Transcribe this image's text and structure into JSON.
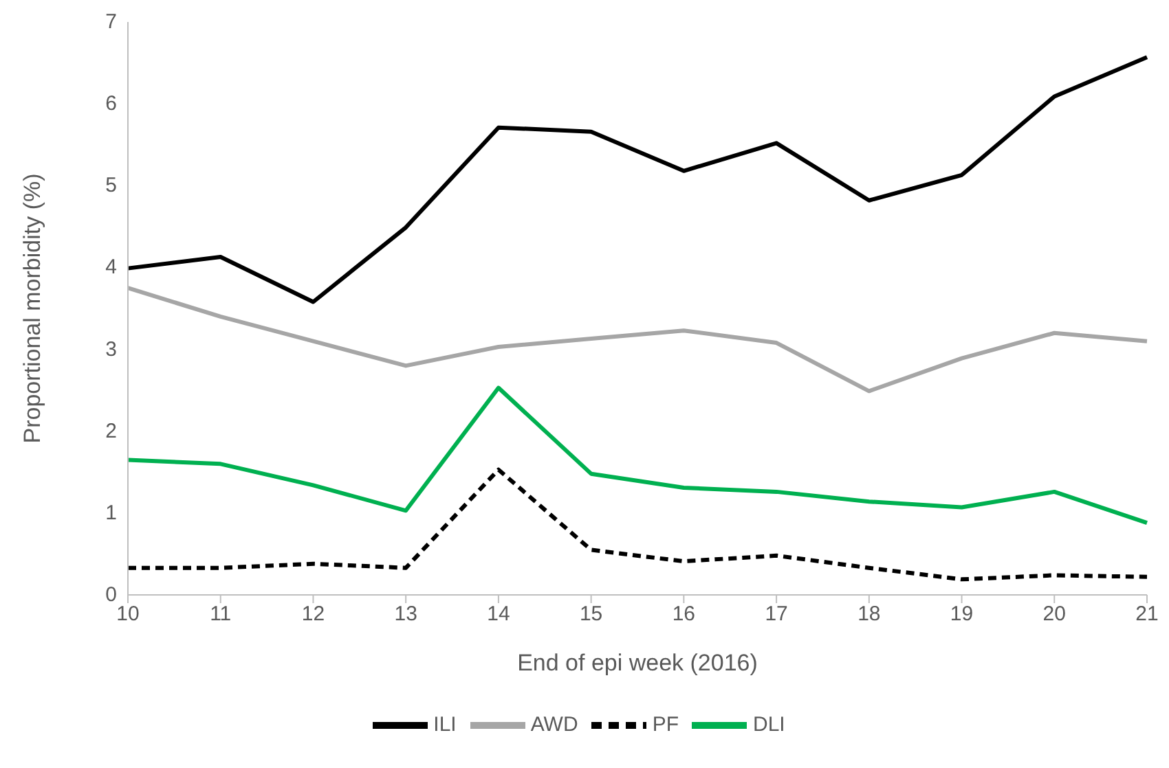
{
  "chart_data": {
    "type": "line",
    "xlabel": "End of epi week (2016)",
    "ylabel": "Proportional morbidity (%)",
    "categories": [
      "10",
      "11",
      "12",
      "13",
      "14",
      "15",
      "16",
      "17",
      "18",
      "19",
      "20",
      "21"
    ],
    "ylim": [
      0,
      7
    ],
    "yticks": [
      0,
      1,
      2,
      3,
      4,
      5,
      6,
      7
    ],
    "grid": false,
    "legend": "bottom",
    "marker": "none",
    "series": [
      {
        "name": "ILI",
        "color": "#000000",
        "line_style": "solid",
        "values": [
          3.99,
          4.13,
          3.58,
          4.49,
          5.71,
          5.66,
          5.18,
          5.52,
          4.82,
          5.13,
          6.09,
          6.57
        ]
      },
      {
        "name": "AWD",
        "color": "#a6a6a6",
        "line_style": "solid",
        "values": [
          3.75,
          3.4,
          3.1,
          2.8,
          3.03,
          3.13,
          3.23,
          3.08,
          2.49,
          2.89,
          3.2,
          3.1
        ]
      },
      {
        "name": "PF",
        "color": "#000000",
        "line_style": "dashed",
        "values": [
          0.33,
          0.33,
          0.38,
          0.33,
          1.53,
          0.55,
          0.41,
          0.48,
          0.33,
          0.19,
          0.24,
          0.22
        ]
      },
      {
        "name": "DLI",
        "color": "#00b050",
        "line_style": "solid",
        "values": [
          1.65,
          1.6,
          1.34,
          1.03,
          2.53,
          1.48,
          1.31,
          1.26,
          1.14,
          1.07,
          1.26,
          0.88
        ]
      }
    ]
  }
}
